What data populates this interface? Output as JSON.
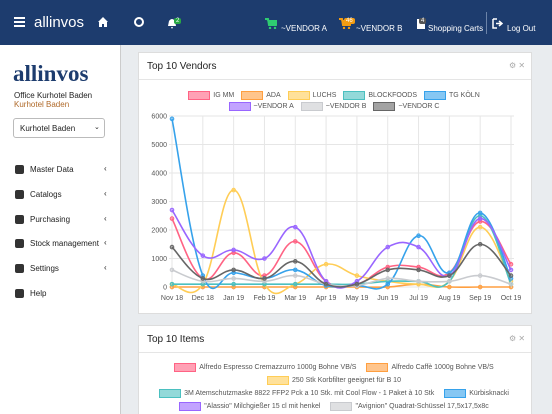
{
  "header": {
    "brand": "allinvos",
    "notification_badge": "2",
    "vendor_a": "~VENDOR A",
    "vendor_b_badge": "46",
    "vendor_b": "~VENDOR B",
    "cart_badge": "4",
    "shopping_carts": "Shopping Carts",
    "logout": "Log Out"
  },
  "sidebar": {
    "logo": "allinvos",
    "office": "Office Kurhotel Baden",
    "location": "Kurhotel Baden",
    "select": "Kurhotel Baden",
    "menu": [
      "Master Data",
      "Catalogs",
      "Purchasing",
      "Stock management",
      "Settings",
      "Help"
    ]
  },
  "chart_data": {
    "type": "line",
    "title": "Top 10 Vendors",
    "categories": [
      "Nov 18",
      "Dec 18",
      "Jan 19",
      "Feb 19",
      "Mar 19",
      "Apr 19",
      "May 19",
      "Jun 19",
      "Jul 19",
      "Aug 19",
      "Sep 19",
      "Oct 19"
    ],
    "ylim": [
      0,
      6000
    ],
    "yticks": [
      0,
      1000,
      2000,
      3000,
      4000,
      5000,
      6000
    ],
    "grid": true,
    "legend": "top",
    "series": [
      {
        "name": "IG MM",
        "color": "#ff6384",
        "values": [
          2400,
          300,
          1200,
          400,
          1600,
          200,
          100,
          700,
          700,
          500,
          2300,
          800
        ]
      },
      {
        "name": "ADA",
        "color": "#ff9f40",
        "values": [
          0,
          0,
          0,
          0,
          0,
          0,
          0,
          0,
          100,
          0,
          0,
          0
        ]
      },
      {
        "name": "LUCHS",
        "color": "#ffcd56",
        "values": [
          100,
          100,
          3400,
          100,
          100,
          800,
          400,
          200,
          100,
          200,
          2100,
          200
        ]
      },
      {
        "name": "BLOCKFOODS",
        "color": "#4bc0c0",
        "values": [
          100,
          100,
          100,
          100,
          100,
          100,
          100,
          200,
          200,
          200,
          2500,
          100
        ]
      },
      {
        "name": "TG KÖLN",
        "color": "#36a2eb",
        "values": [
          5900,
          400,
          500,
          300,
          600,
          50,
          50,
          100,
          1800,
          500,
          2600,
          300
        ]
      },
      {
        "name": "~VENDOR A",
        "color": "#9966ff",
        "values": [
          2700,
          1100,
          1300,
          1000,
          2100,
          200,
          200,
          1400,
          1400,
          400,
          2400,
          600
        ]
      },
      {
        "name": "~VENDOR B",
        "color": "#c9cbcf",
        "values": [
          600,
          200,
          300,
          200,
          400,
          100,
          50,
          300,
          200,
          200,
          400,
          100
        ]
      },
      {
        "name": "~VENDOR C",
        "color": "#666666",
        "values": [
          1400,
          300,
          600,
          300,
          900,
          100,
          100,
          600,
          600,
          400,
          1500,
          400
        ]
      }
    ]
  },
  "items_panel": {
    "title": "Top 10 Items",
    "legend": [
      {
        "name": "Alfredo Espresso Cremazzurro 1000g Bohne VB/S",
        "color": "#ff6384"
      },
      {
        "name": "Alfredo Caffè 1000g Bohne VB/S",
        "color": "#ff9f40"
      },
      {
        "name": "250 Stk Korbfilter geeignet für B 10",
        "color": "#ffcd56"
      },
      {
        "name": "3M Atemschutzmaske 8822 FFP2 Pck a 10 Stk. mit Cool Flow - 1 Paket à 10 Stk",
        "color": "#4bc0c0"
      },
      {
        "name": "Kürbisknacki",
        "color": "#36a2eb"
      },
      {
        "name": "\"Alassio\" Milchgießer 15 cl mit henkel",
        "color": "#9966ff"
      },
      {
        "name": "\"Avignion\" Quadrat-Schüssel 17,5x17,5x8c",
        "color": "#c9cbcf"
      }
    ]
  }
}
